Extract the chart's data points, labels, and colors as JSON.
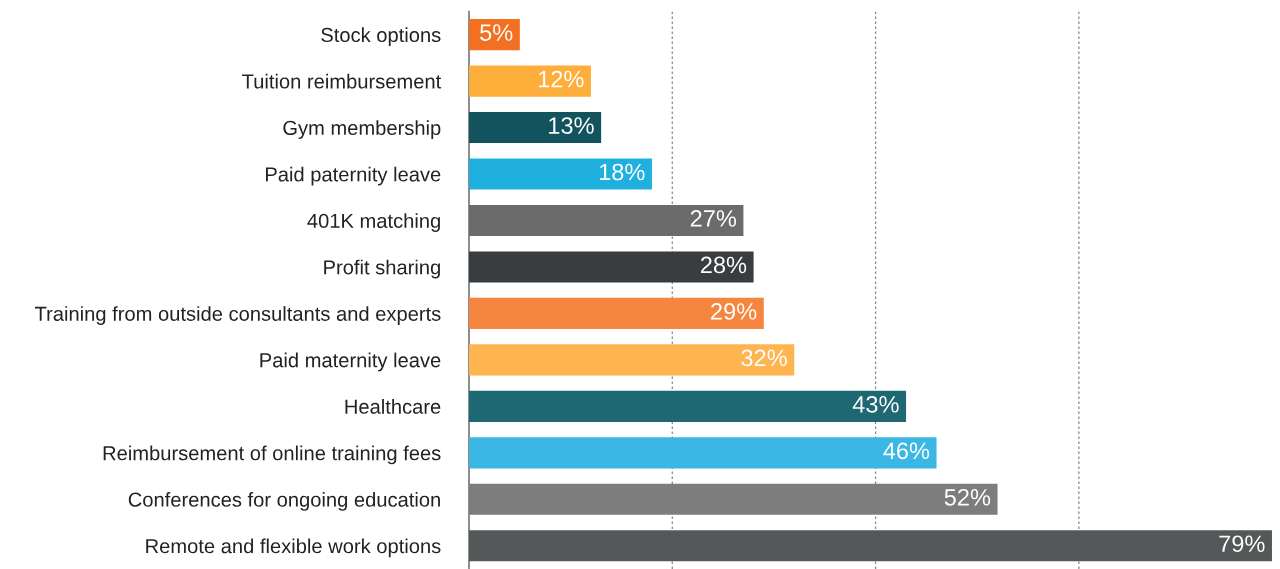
{
  "chart_data": {
    "type": "bar",
    "orientation": "horizontal",
    "categories": [
      "Stock options",
      "Tuition reimbursement",
      "Gym membership",
      "Paid paternity leave",
      "401K matching",
      "Profit sharing",
      "Training from outside consultants and experts",
      "Paid maternity leave",
      "Healthcare",
      "Reimbursement of online training fees",
      "Conferences for ongoing education",
      "Remote and flexible work options"
    ],
    "values": [
      5,
      12,
      13,
      18,
      27,
      28,
      29,
      32,
      43,
      46,
      52,
      79
    ],
    "colors": [
      "#f36f21",
      "#fdae3b",
      "#13535e",
      "#1fb0e0",
      "#6b6b6b",
      "#3a3d3f",
      "#f5853f",
      "#ffb54f",
      "#1d6872",
      "#3ab8e3",
      "#7d7d7d",
      "#555859"
    ],
    "value_labels": [
      "5%",
      "12%",
      "13%",
      "18%",
      "27%",
      "28%",
      "29%",
      "32%",
      "43%",
      "46%",
      "52%",
      "79%"
    ],
    "xticks": [
      {
        "value": 20,
        "label": null
      },
      {
        "value": 40,
        "label": null
      },
      {
        "value": 60,
        "label": null
      }
    ],
    "grid": "x",
    "tick_labels": "y"
  }
}
